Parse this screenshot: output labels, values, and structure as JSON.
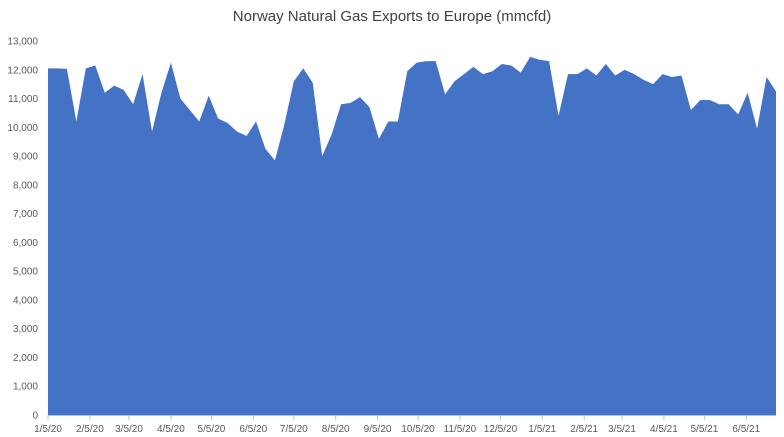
{
  "chart_data": {
    "type": "area",
    "title": "Norway Natural Gas Exports to Europe (mmcfd)",
    "xlabel": "",
    "ylabel": "",
    "ylim": [
      0,
      13000
    ],
    "yticks": [
      0,
      1000,
      2000,
      3000,
      4000,
      5000,
      6000,
      7000,
      8000,
      9000,
      10000,
      11000,
      12000,
      13000
    ],
    "ytick_labels": [
      "0",
      "1,000",
      "2,000",
      "3,000",
      "4,000",
      "5,000",
      "6,000",
      "7,000",
      "8,000",
      "9,000",
      "10,000",
      "11,000",
      "12,000",
      "13,000"
    ],
    "xlim": [
      "2020-01-05",
      "2021-06-27"
    ],
    "xticks": [
      "2020-01-05",
      "2020-02-05",
      "2020-03-05",
      "2020-04-05",
      "2020-05-05",
      "2020-06-05",
      "2020-07-05",
      "2020-08-05",
      "2020-09-05",
      "2020-10-05",
      "2020-11-05",
      "2020-12-05",
      "2021-01-05",
      "2021-02-05",
      "2021-03-05",
      "2021-04-05",
      "2021-05-05",
      "2021-06-05"
    ],
    "xtick_labels": [
      "1/5/20",
      "2/5/20",
      "3/5/20",
      "4/5/20",
      "5/5/20",
      "6/5/20",
      "7/5/20",
      "8/5/20",
      "9/5/20",
      "10/5/20",
      "11/5/20",
      "12/5/20",
      "1/5/21",
      "2/5/21",
      "3/5/21",
      "4/5/21",
      "5/5/21",
      "6/5/21"
    ],
    "grid": false,
    "legend": "none",
    "color": "#4472C4",
    "series": [
      {
        "x": [
          "2020-01-05",
          "2020-01-12",
          "2020-01-19",
          "2020-01-26",
          "2020-02-02",
          "2020-02-09",
          "2020-02-16",
          "2020-02-23",
          "2020-03-01",
          "2020-03-08",
          "2020-03-15",
          "2020-03-22",
          "2020-03-29",
          "2020-04-05",
          "2020-04-12",
          "2020-04-19",
          "2020-04-26",
          "2020-05-03",
          "2020-05-10",
          "2020-05-17",
          "2020-05-24",
          "2020-05-31",
          "2020-06-07",
          "2020-06-14",
          "2020-06-21",
          "2020-06-28",
          "2020-07-05",
          "2020-07-12",
          "2020-07-19",
          "2020-07-26",
          "2020-08-02",
          "2020-08-09",
          "2020-08-16",
          "2020-08-23",
          "2020-08-30",
          "2020-09-06",
          "2020-09-13",
          "2020-09-20",
          "2020-09-27",
          "2020-10-04",
          "2020-10-11",
          "2020-10-18",
          "2020-10-25",
          "2020-11-01",
          "2020-11-08",
          "2020-11-15",
          "2020-11-22",
          "2020-11-29",
          "2020-12-06",
          "2020-12-13",
          "2020-12-20",
          "2020-12-27",
          "2021-01-03",
          "2021-01-10",
          "2021-01-17",
          "2021-01-24",
          "2021-01-31",
          "2021-02-07",
          "2021-02-14",
          "2021-02-21",
          "2021-02-28",
          "2021-03-07",
          "2021-03-14",
          "2021-03-21",
          "2021-03-28",
          "2021-04-04",
          "2021-04-11",
          "2021-04-18",
          "2021-04-25",
          "2021-05-02",
          "2021-05-09",
          "2021-05-16",
          "2021-05-23",
          "2021-05-30",
          "2021-06-06",
          "2021-06-13",
          "2021-06-20",
          "2021-06-27"
        ],
        "values": [
          12050,
          12050,
          12030,
          10200,
          12050,
          12150,
          11200,
          11450,
          11300,
          10800,
          11850,
          9850,
          11200,
          12250,
          11000,
          10600,
          10200,
          11100,
          10300,
          10150,
          9850,
          9700,
          10200,
          9250,
          8850,
          10100,
          11600,
          12050,
          11550,
          9000,
          9750,
          10800,
          10850,
          11050,
          10700,
          9600,
          10200,
          10200,
          11950,
          12250,
          12300,
          12300,
          11150,
          11600,
          11850,
          12100,
          11850,
          11950,
          12200,
          12150,
          11900,
          12450,
          12350,
          12300,
          10400,
          11850,
          11850,
          12050,
          11800,
          12200,
          11800,
          12000,
          11850,
          11650,
          11500,
          11850,
          11750,
          11800,
          10600,
          10950,
          10950,
          10800,
          10800,
          10450,
          11200,
          9950,
          11750,
          11250
        ]
      }
    ]
  }
}
